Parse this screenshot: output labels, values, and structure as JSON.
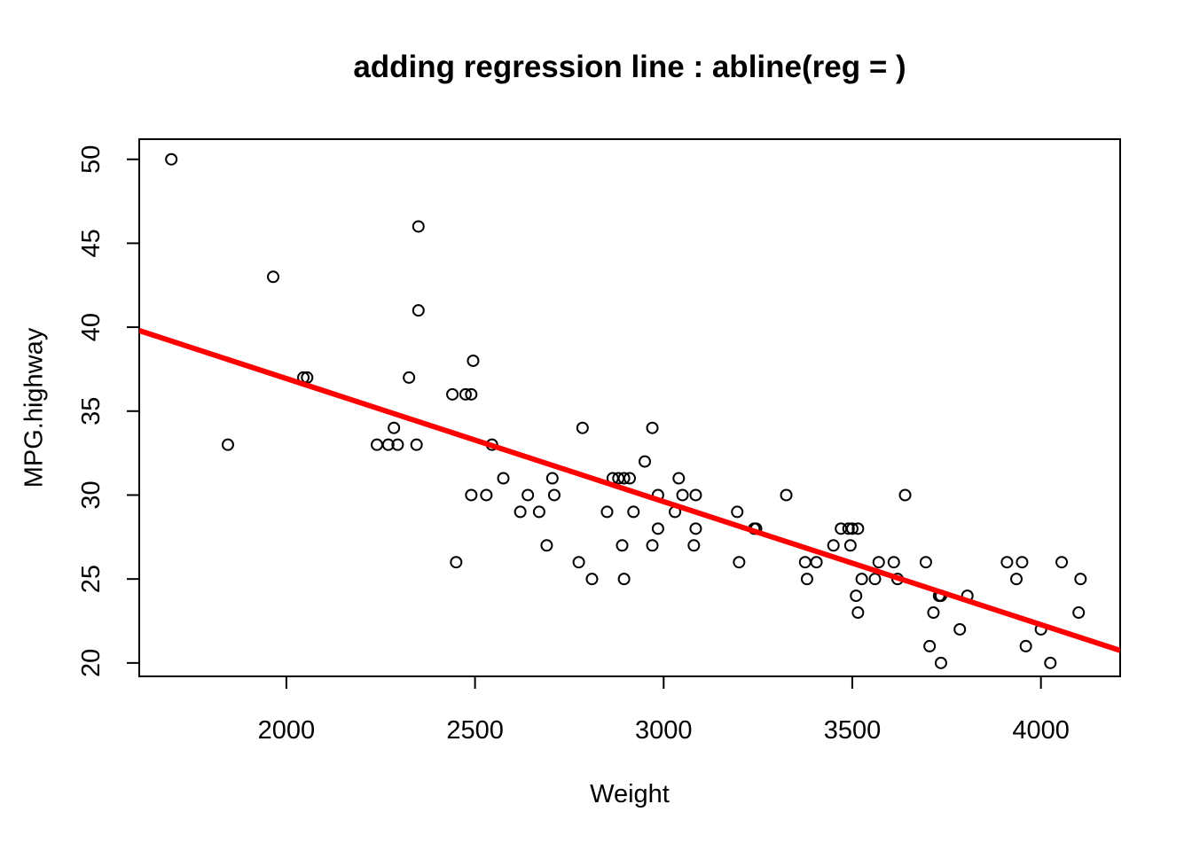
{
  "chart_data": {
    "type": "scatter",
    "title": "adding regression line : abline(reg = )",
    "xlabel": "Weight",
    "ylabel": "MPG.highway",
    "xlim": [
      1610,
      4210
    ],
    "ylim": [
      19.2,
      51.2
    ],
    "xticks": [
      2000,
      2500,
      3000,
      3500,
      4000
    ],
    "yticks": [
      20,
      25,
      30,
      35,
      40,
      45,
      50
    ],
    "grid": false,
    "regression_line": {
      "color": "#ff0000",
      "intercept": 51.6,
      "slope": -0.00733
    },
    "points": [
      [
        1695,
        50
      ],
      [
        1845,
        33
      ],
      [
        1965,
        43
      ],
      [
        2045,
        37
      ],
      [
        2055,
        37
      ],
      [
        2240,
        33
      ],
      [
        2270,
        33
      ],
      [
        2285,
        34
      ],
      [
        2295,
        33
      ],
      [
        2325,
        37
      ],
      [
        2345,
        33
      ],
      [
        2350,
        46
      ],
      [
        2350,
        41
      ],
      [
        2440,
        36
      ],
      [
        2450,
        26
      ],
      [
        2475,
        36
      ],
      [
        2490,
        36
      ],
      [
        2490,
        30
      ],
      [
        2495,
        38
      ],
      [
        2530,
        30
      ],
      [
        2545,
        33
      ],
      [
        2575,
        31
      ],
      [
        2620,
        29
      ],
      [
        2640,
        30
      ],
      [
        2670,
        29
      ],
      [
        2690,
        27
      ],
      [
        2705,
        31
      ],
      [
        2710,
        30
      ],
      [
        2775,
        26
      ],
      [
        2785,
        34
      ],
      [
        2810,
        25
      ],
      [
        2850,
        29
      ],
      [
        2865,
        31
      ],
      [
        2880,
        31
      ],
      [
        2890,
        27
      ],
      [
        2895,
        31
      ],
      [
        2895,
        25
      ],
      [
        2910,
        31
      ],
      [
        2920,
        29
      ],
      [
        2950,
        32
      ],
      [
        2970,
        34
      ],
      [
        2970,
        27
      ],
      [
        2985,
        30
      ],
      [
        2985,
        28
      ],
      [
        3030,
        29
      ],
      [
        3040,
        31
      ],
      [
        3050,
        30
      ],
      [
        3080,
        27
      ],
      [
        3085,
        28
      ],
      [
        3085,
        30
      ],
      [
        3195,
        29
      ],
      [
        3200,
        26
      ],
      [
        3240,
        28
      ],
      [
        3245,
        28
      ],
      [
        3325,
        30
      ],
      [
        3375,
        26
      ],
      [
        3380,
        25
      ],
      [
        3405,
        26
      ],
      [
        3450,
        27
      ],
      [
        3470,
        28
      ],
      [
        3490,
        28
      ],
      [
        3495,
        27
      ],
      [
        3500,
        28
      ],
      [
        3510,
        24
      ],
      [
        3515,
        23
      ],
      [
        3515,
        28
      ],
      [
        3525,
        25
      ],
      [
        3560,
        25
      ],
      [
        3570,
        26
      ],
      [
        3610,
        26
      ],
      [
        3620,
        25
      ],
      [
        3640,
        30
      ],
      [
        3695,
        26
      ],
      [
        3705,
        21
      ],
      [
        3715,
        23
      ],
      [
        3730,
        24
      ],
      [
        3735,
        24
      ],
      [
        3735,
        20
      ],
      [
        3785,
        22
      ],
      [
        3805,
        24
      ],
      [
        3910,
        26
      ],
      [
        3935,
        25
      ],
      [
        3950,
        26
      ],
      [
        3960,
        21
      ],
      [
        4000,
        22
      ],
      [
        4025,
        20
      ],
      [
        4055,
        26
      ],
      [
        4100,
        23
      ],
      [
        4105,
        25
      ]
    ]
  }
}
